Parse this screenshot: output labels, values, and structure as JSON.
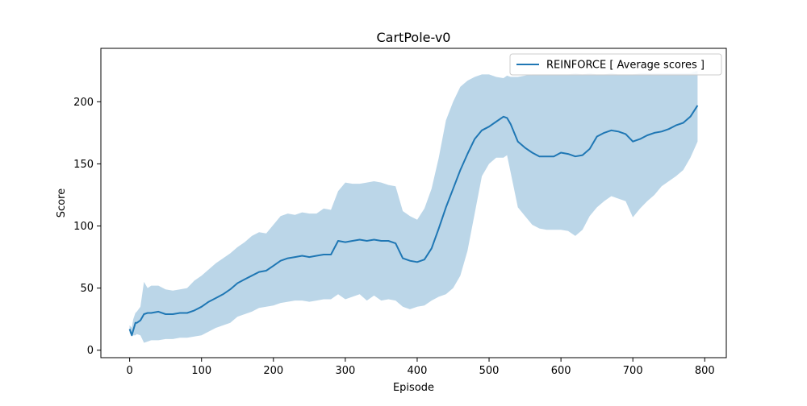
{
  "chart_data": {
    "type": "line",
    "title": "CartPole-v0",
    "xlabel": "Episode",
    "ylabel": "Score",
    "xlim": [
      -40,
      830
    ],
    "ylim": [
      -6,
      243
    ],
    "xticks": [
      0,
      100,
      200,
      300,
      400,
      500,
      600,
      700,
      800
    ],
    "yticks": [
      0,
      50,
      100,
      150,
      200
    ],
    "grid": false,
    "legend_position": "top-right",
    "series": [
      {
        "name": "REINFORCE [ Average scores ]",
        "color": "#1f77b4",
        "fill_color": "#1f77b4",
        "fill_opacity": 0.3,
        "x": [
          0,
          3,
          5,
          8,
          10,
          15,
          20,
          25,
          30,
          40,
          50,
          60,
          70,
          80,
          90,
          100,
          110,
          120,
          130,
          140,
          150,
          160,
          170,
          180,
          190,
          200,
          210,
          220,
          230,
          240,
          250,
          260,
          270,
          280,
          290,
          300,
          310,
          320,
          330,
          340,
          350,
          360,
          370,
          380,
          390,
          400,
          410,
          420,
          430,
          440,
          450,
          460,
          470,
          480,
          490,
          500,
          510,
          520,
          525,
          530,
          540,
          550,
          560,
          570,
          580,
          590,
          600,
          610,
          620,
          630,
          640,
          650,
          660,
          670,
          680,
          690,
          700,
          710,
          720,
          730,
          740,
          750,
          760,
          770,
          780,
          790
        ],
        "mean": [
          17,
          12,
          16,
          22,
          22,
          24,
          29,
          30,
          30,
          31,
          29,
          29,
          30,
          30,
          32,
          35,
          39,
          42,
          45,
          49,
          54,
          57,
          60,
          63,
          64,
          68,
          72,
          74,
          75,
          76,
          75,
          76,
          77,
          77,
          88,
          87,
          88,
          89,
          88,
          89,
          88,
          88,
          86,
          74,
          72,
          71,
          73,
          82,
          98,
          115,
          130,
          145,
          158,
          170,
          177,
          180,
          184,
          188,
          187,
          182,
          168,
          163,
          159,
          156,
          156,
          156,
          159,
          158,
          156,
          157,
          162,
          172,
          175,
          177,
          176,
          174,
          168,
          170,
          173,
          175,
          176,
          178,
          181,
          183,
          188,
          197
        ],
        "upper": [
          20,
          18,
          25,
          30,
          31,
          35,
          55,
          50,
          52,
          52,
          49,
          48,
          49,
          50,
          56,
          60,
          65,
          70,
          74,
          78,
          83,
          87,
          92,
          95,
          94,
          101,
          108,
          110,
          109,
          111,
          110,
          110,
          114,
          113,
          128,
          135,
          134,
          134,
          135,
          136,
          135,
          133,
          132,
          112,
          108,
          105,
          114,
          130,
          155,
          185,
          200,
          212,
          217,
          220,
          222,
          222,
          220,
          219,
          221,
          220,
          220,
          221,
          222,
          222,
          222,
          222,
          222,
          222,
          223,
          222,
          223,
          222,
          222,
          223,
          222,
          222,
          222,
          223,
          223,
          223,
          223,
          223,
          223,
          223,
          223,
          225
        ],
        "lower": [
          14,
          11,
          12,
          12,
          13,
          12,
          6,
          7,
          8,
          8,
          9,
          9,
          10,
          10,
          11,
          12,
          15,
          18,
          20,
          22,
          27,
          29,
          31,
          34,
          35,
          36,
          38,
          39,
          40,
          40,
          39,
          40,
          41,
          41,
          45,
          41,
          43,
          45,
          40,
          44,
          40,
          41,
          40,
          35,
          33,
          35,
          36,
          40,
          43,
          45,
          50,
          60,
          80,
          110,
          140,
          150,
          155,
          155,
          157,
          143,
          115,
          108,
          101,
          98,
          97,
          97,
          97,
          96,
          92,
          97,
          108,
          115,
          120,
          124,
          122,
          120,
          107,
          114,
          120,
          125,
          132,
          136,
          140,
          145,
          155,
          168
        ]
      }
    ]
  }
}
